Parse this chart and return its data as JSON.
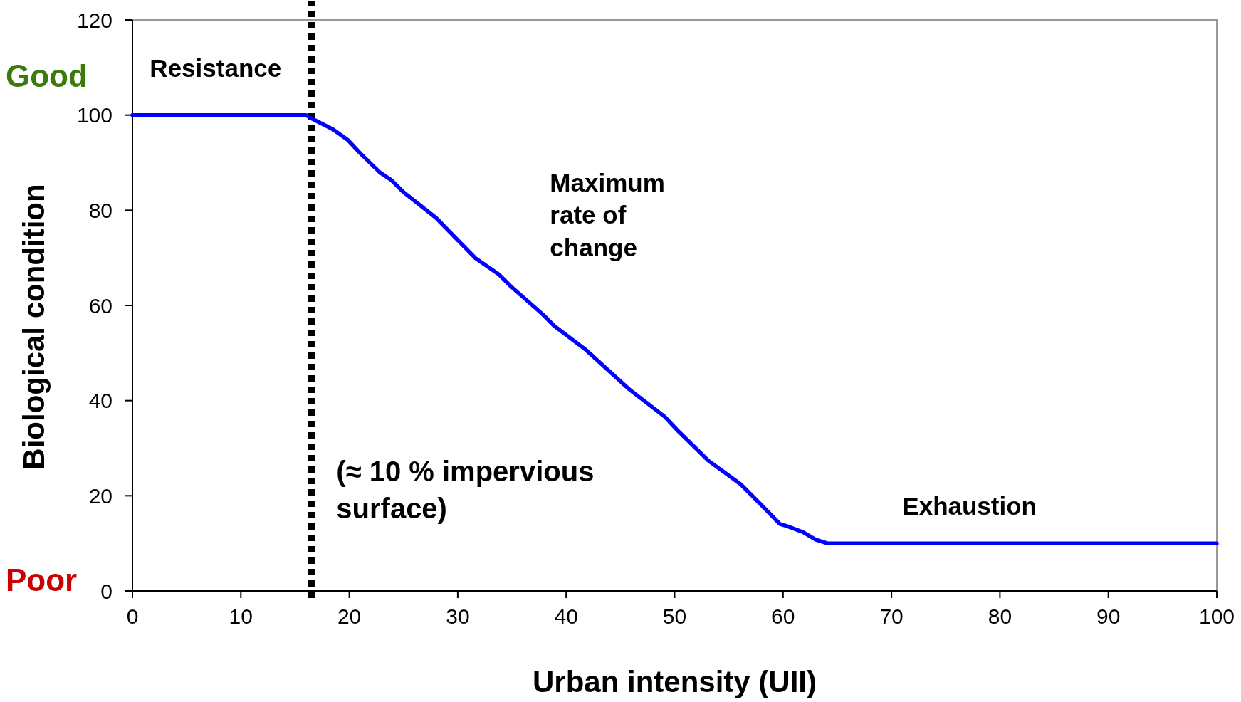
{
  "chart_data": {
    "type": "line",
    "xlabel": "Urban intensity (UII)",
    "ylabel": "Biological condition",
    "x": [
      0,
      16,
      16.6,
      18.5,
      19.9,
      21,
      22.8,
      23.9,
      25,
      28,
      31.6,
      33.8,
      34.9,
      37.8,
      38.9,
      41.8,
      45.8,
      49.1,
      50.2,
      52,
      53.1,
      56.1,
      57.9,
      59.7,
      60.4,
      61.9,
      63,
      64.1,
      100
    ],
    "series": [
      {
        "color": "#0000ff",
        "values": [
          100,
          100,
          99.2,
          97,
          94.7,
          92,
          88,
          86.3,
          83.8,
          78.4,
          70,
          66.5,
          64,
          58.2,
          55.7,
          50.7,
          42.4,
          36.6,
          33.9,
          29.9,
          27.4,
          22.4,
          18.3,
          14.1,
          13.6,
          12.3,
          10.8,
          10,
          10
        ]
      }
    ],
    "xlim": [
      0,
      100
    ],
    "ylim": [
      0,
      120
    ],
    "xticks": [
      0,
      10,
      20,
      30,
      40,
      50,
      60,
      70,
      80,
      90,
      100
    ],
    "yticks": [
      0,
      20,
      40,
      60,
      80,
      100,
      120
    ],
    "grid": false,
    "marker": "none",
    "line_style": "solid",
    "ref_lines": [
      {
        "axis": "x",
        "value": 16.5,
        "color": "#000000",
        "line_style": "dotted"
      }
    ],
    "annotations": [
      "Good",
      "Poor",
      "Resistance",
      "Maximum rate of change",
      "(≈ 10 % impervious surface)",
      "Exhaustion"
    ]
  }
}
